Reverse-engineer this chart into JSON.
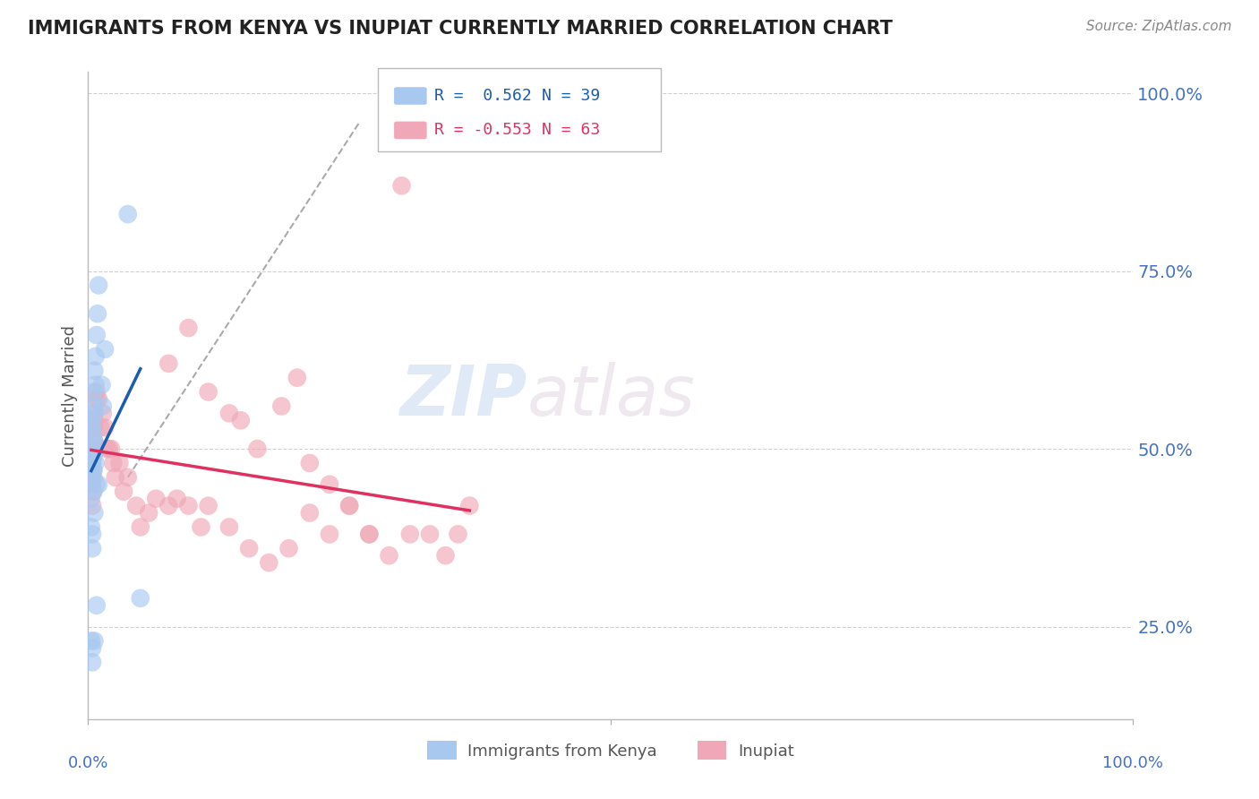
{
  "title": "IMMIGRANTS FROM KENYA VS INUPIAT CURRENTLY MARRIED CORRELATION CHART",
  "source": "Source: ZipAtlas.com",
  "ylabel": "Currently Married",
  "xmin": 0.0,
  "xmax": 1.0,
  "ymin": 0.12,
  "ymax": 1.03,
  "legend_r1": "R =  0.562",
  "legend_n1": "N = 39",
  "legend_r2": "R = -0.553",
  "legend_n2": "N = 63",
  "blue_color": "#a8c8f0",
  "pink_color": "#f0a8b8",
  "blue_line_color": "#1a5cb0",
  "pink_line_color": "#e03060",
  "watermark_zip": "ZIP",
  "watermark_atlas": "atlas",
  "grid_color": "#d0d0d0",
  "background_color": "#ffffff",
  "title_color": "#222222",
  "tick_color": "#4472c4",
  "yticks": [
    0.25,
    0.5,
    0.75,
    1.0
  ],
  "ytick_labels": [
    "25.0%",
    "50.0%",
    "75.0%",
    "100.0%"
  ],
  "kenya_x": [
    0.005,
    0.007,
    0.008,
    0.006,
    0.004,
    0.005,
    0.006,
    0.004,
    0.005,
    0.003,
    0.003,
    0.004,
    0.005,
    0.004,
    0.004,
    0.005,
    0.006,
    0.007,
    0.006,
    0.005,
    0.005,
    0.004,
    0.004,
    0.006,
    0.007,
    0.008,
    0.009,
    0.01,
    0.038,
    0.05,
    0.01,
    0.014,
    0.013,
    0.016,
    0.008,
    0.006,
    0.003,
    0.004,
    0.004
  ],
  "kenya_y": [
    0.44,
    0.48,
    0.45,
    0.41,
    0.47,
    0.49,
    0.51,
    0.53,
    0.5,
    0.43,
    0.39,
    0.46,
    0.47,
    0.36,
    0.38,
    0.52,
    0.56,
    0.59,
    0.61,
    0.58,
    0.49,
    0.48,
    0.54,
    0.55,
    0.63,
    0.66,
    0.69,
    0.73,
    0.83,
    0.29,
    0.45,
    0.56,
    0.59,
    0.64,
    0.28,
    0.23,
    0.23,
    0.2,
    0.22
  ],
  "inupiat_x": [
    0.003,
    0.005,
    0.006,
    0.008,
    0.005,
    0.004,
    0.006,
    0.005,
    0.006,
    0.004,
    0.008,
    0.006,
    0.005,
    0.005,
    0.004,
    0.01,
    0.012,
    0.014,
    0.016,
    0.018,
    0.02,
    0.022,
    0.024,
    0.026,
    0.03,
    0.034,
    0.038,
    0.046,
    0.05,
    0.058,
    0.065,
    0.077,
    0.085,
    0.096,
    0.108,
    0.115,
    0.135,
    0.154,
    0.173,
    0.192,
    0.212,
    0.231,
    0.25,
    0.269,
    0.288,
    0.308,
    0.327,
    0.342,
    0.354,
    0.365,
    0.212,
    0.231,
    0.25,
    0.269,
    0.146,
    0.162,
    0.115,
    0.135,
    0.077,
    0.096,
    0.185,
    0.2,
    0.3
  ],
  "inupiat_y": [
    0.5,
    0.53,
    0.55,
    0.57,
    0.51,
    0.48,
    0.53,
    0.46,
    0.51,
    0.45,
    0.58,
    0.54,
    0.47,
    0.44,
    0.42,
    0.57,
    0.53,
    0.55,
    0.53,
    0.5,
    0.5,
    0.5,
    0.48,
    0.46,
    0.48,
    0.44,
    0.46,
    0.42,
    0.39,
    0.41,
    0.43,
    0.42,
    0.43,
    0.42,
    0.39,
    0.42,
    0.39,
    0.36,
    0.34,
    0.36,
    0.41,
    0.38,
    0.42,
    0.38,
    0.35,
    0.38,
    0.38,
    0.35,
    0.38,
    0.42,
    0.48,
    0.45,
    0.42,
    0.38,
    0.54,
    0.5,
    0.58,
    0.55,
    0.62,
    0.67,
    0.56,
    0.6,
    0.87
  ],
  "dashed_line_x": [
    0.038,
    0.26
  ],
  "dashed_line_y": [
    0.46,
    0.96
  ]
}
